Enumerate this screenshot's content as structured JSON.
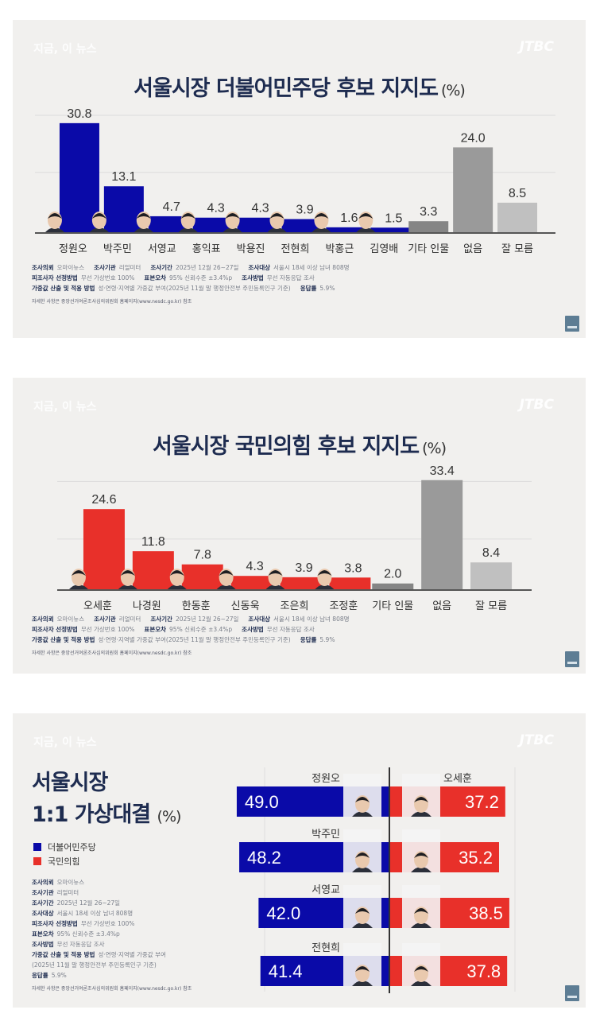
{
  "brand": "지금, 이 뉴스",
  "logo": "JTBC",
  "colors": {
    "democratic": "#0a0aa8",
    "ppp": "#e8302a",
    "other": "#8a8a8a",
    "none": "#9b9b9b",
    "dontknow": "#bdbdbd",
    "title": "#1e2c50",
    "panel_bg": "#f1f0ee"
  },
  "survey": {
    "client_label": "조사의뢰",
    "client": "오마이뉴스",
    "agency_label": "조사기관",
    "agency": "리얼미터",
    "period_label": "조사기간",
    "period": "2025년 12월 26~27일",
    "target_label": "조사대상",
    "target": "서울시 18세 이상 남녀 808명",
    "sampling_label": "피조사자 선정방법",
    "sampling": "무선 가상번호 100%",
    "error_label": "표본오차",
    "error": "95% 신뢰수준 ±3.4%p",
    "method_label": "조사방법",
    "method": "무선 자동응답 조사",
    "weight_label": "가중값 산출 및 적용 방법",
    "weight": "성·연령·지역별 가중값 부여(2025년 11월 말 행정안전부 주민등록인구 기준)",
    "weight_a": "성·연령·지역별 가중값 부여",
    "weight_b": "(2025년 11월 말 행정안전부 주민등록인구 기준)",
    "response_label": "응답률",
    "response": "5.9%",
    "footnote": "자세한 사항은 중앙선거여론조사심의위원회 홈페이지(www.nesdc.go.kr) 참조"
  },
  "chart_data": [
    {
      "type": "bar",
      "title": "서울시장 더불어민주당 후보 지지도",
      "unit": "(%)",
      "categories": [
        "정원오",
        "박주민",
        "서영교",
        "홍익표",
        "박용진",
        "전현희",
        "박홍근",
        "김영배",
        "기타 인물",
        "없음",
        "잘 모름"
      ],
      "values": [
        30.8,
        13.1,
        4.7,
        4.3,
        4.3,
        3.9,
        1.6,
        1.5,
        3.3,
        24.0,
        8.5
      ],
      "value_labels": [
        "30.8",
        "13.1",
        "4.7",
        "4.3",
        "4.3",
        "3.9",
        "1.6",
        "1.5",
        "3.3",
        "24.0",
        "8.5"
      ],
      "kinds": [
        "party",
        "party",
        "party",
        "party",
        "party",
        "party",
        "party",
        "party",
        "other",
        "none",
        "dontknow"
      ],
      "xlabel": "",
      "ylabel": "",
      "ylim": [
        0,
        33
      ],
      "grid": true,
      "legend": "none"
    },
    {
      "type": "bar",
      "title": "서울시장 국민의힘 후보 지지도",
      "unit": "(%)",
      "categories": [
        "오세훈",
        "나경원",
        "한동훈",
        "신동욱",
        "조은희",
        "조정훈",
        "기타 인물",
        "없음",
        "잘 모름"
      ],
      "values": [
        24.6,
        11.8,
        7.8,
        4.3,
        3.9,
        3.8,
        2.0,
        33.4,
        8.4
      ],
      "value_labels": [
        "24.6",
        "11.8",
        "7.8",
        "4.3",
        "3.9",
        "3.8",
        "2.0",
        "33.4",
        "8.4"
      ],
      "kinds": [
        "party",
        "party",
        "party",
        "party",
        "party",
        "party",
        "other",
        "none",
        "dontknow"
      ],
      "xlabel": "",
      "ylabel": "",
      "ylim": [
        0,
        36
      ],
      "grid": true,
      "legend": "none"
    },
    {
      "type": "bar",
      "orientation": "horizontal-diverging",
      "title": "서울시장 1:1 가상대결",
      "title_line1": "서울시장",
      "title_line2": "1:1 가상대결",
      "unit": "(%)",
      "legend": "left",
      "legend_entries": [
        "더불어민주당",
        "국민의힘"
      ],
      "categories": [
        "정원오 vs 오세훈",
        "박주민 vs 오세훈",
        "서영교 vs 오세훈",
        "전현희 vs 오세훈"
      ],
      "left_names": [
        "정원오",
        "박주민",
        "서영교",
        "전현희"
      ],
      "right_names": [
        "오세훈",
        "",
        "",
        ""
      ],
      "series": [
        {
          "name": "더불어민주당",
          "values": [
            49.0,
            48.2,
            42.0,
            41.4
          ],
          "labels": [
            "49.0",
            "48.2",
            "42.0",
            "41.4"
          ]
        },
        {
          "name": "국민의힘",
          "values": [
            37.2,
            35.2,
            38.5,
            37.8
          ],
          "labels": [
            "37.2",
            "35.2",
            "38.5",
            "37.8"
          ]
        }
      ],
      "xlim": [
        0,
        50
      ]
    }
  ]
}
